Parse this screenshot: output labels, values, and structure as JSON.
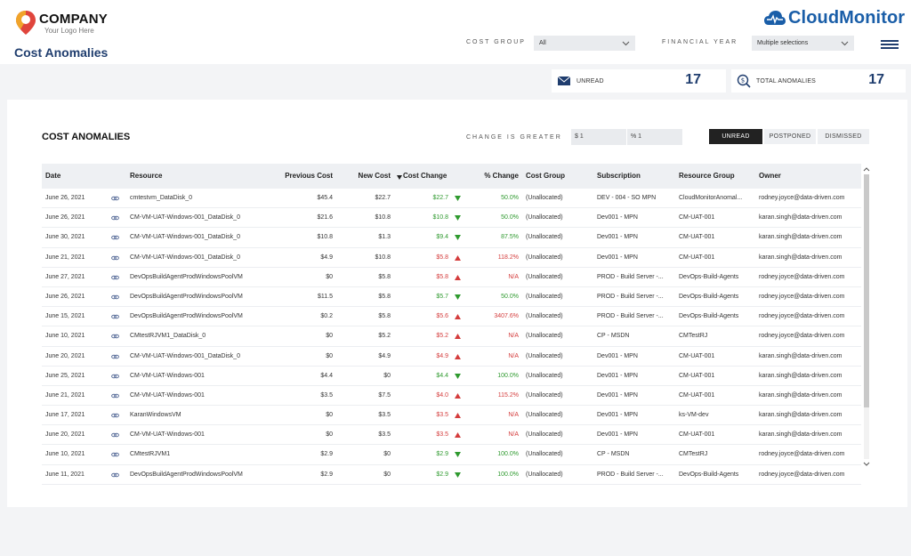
{
  "header": {
    "company": "COMPANY",
    "tagline": "Your Logo Here",
    "page_title": "Cost Anomalies",
    "brand": "CloudMonitor"
  },
  "filters": {
    "cost_group_label": "COST GROUP",
    "cost_group_value": "All",
    "financial_year_label": "FINANCIAL YEAR",
    "financial_year_value": "Multiple selections"
  },
  "kpis": {
    "unread_label": "UNREAD",
    "unread_value": "17",
    "total_label": "TOTAL ANOMALIES",
    "total_value": "17"
  },
  "panel": {
    "title": "COST ANOMALIES",
    "change_label": "CHANGE IS GREATER",
    "dollar_input": "$ 1",
    "percent_input": "% 1",
    "tabs": [
      "UNREAD",
      "POSTPONED",
      "DISMISSED"
    ]
  },
  "colors": {
    "accent": "#1f3d6e",
    "brand": "#1a5ea8",
    "increase": "#d43c3c",
    "decrease": "#2f9a2f"
  },
  "table": {
    "columns": [
      "Date",
      "Resource",
      "Previous Cost",
      "New Cost",
      "Cost Change",
      "% Change",
      "Cost Group",
      "Subscription",
      "Resource Group",
      "Owner"
    ],
    "rows": [
      {
        "date": "June 26, 2021",
        "resource": "cmtestvm_DataDisk_0",
        "prev": "$45.4",
        "new": "$22.7",
        "change": "$22.7",
        "dir": "down",
        "pct": "50.0%",
        "group": "(Unallocated)",
        "sub": "DEV - 004 - SO MPN",
        "rg": "CloudMonitorAnomal...",
        "owner": "rodney.joyce@data-driven.com"
      },
      {
        "date": "June 26, 2021",
        "resource": "CM-VM-UAT-Windows-001_DataDisk_0",
        "prev": "$21.6",
        "new": "$10.8",
        "change": "$10.8",
        "dir": "down",
        "pct": "50.0%",
        "group": "(Unallocated)",
        "sub": "Dev001 - MPN",
        "rg": "CM-UAT-001",
        "owner": "karan.singh@data-driven.com"
      },
      {
        "date": "June 30, 2021",
        "resource": "CM-VM-UAT-Windows-001_DataDisk_0",
        "prev": "$10.8",
        "new": "$1.3",
        "change": "$9.4",
        "dir": "down",
        "pct": "87.5%",
        "group": "(Unallocated)",
        "sub": "Dev001 - MPN",
        "rg": "CM-UAT-001",
        "owner": "karan.singh@data-driven.com"
      },
      {
        "date": "June 21, 2021",
        "resource": "CM-VM-UAT-Windows-001_DataDisk_0",
        "prev": "$4.9",
        "new": "$10.8",
        "change": "$5.8",
        "dir": "up",
        "pct": "118.2%",
        "group": "(Unallocated)",
        "sub": "Dev001 - MPN",
        "rg": "CM-UAT-001",
        "owner": "karan.singh@data-driven.com"
      },
      {
        "date": "June 27, 2021",
        "resource": "DevOpsBuildAgentProdWindowsPoolVM",
        "prev": "$0",
        "new": "$5.8",
        "change": "$5.8",
        "dir": "up",
        "pct": "N/A",
        "group": "(Unallocated)",
        "sub": "PROD - Build Server -...",
        "rg": "DevOps-Build-Agents",
        "owner": "rodney.joyce@data-driven.com"
      },
      {
        "date": "June 26, 2021",
        "resource": "DevOpsBuildAgentProdWindowsPoolVM",
        "prev": "$11.5",
        "new": "$5.8",
        "change": "$5.7",
        "dir": "down",
        "pct": "50.0%",
        "group": "(Unallocated)",
        "sub": "PROD - Build Server -...",
        "rg": "DevOps-Build-Agents",
        "owner": "rodney.joyce@data-driven.com"
      },
      {
        "date": "June 15, 2021",
        "resource": "DevOpsBuildAgentProdWindowsPoolVM",
        "prev": "$0.2",
        "new": "$5.8",
        "change": "$5.6",
        "dir": "up",
        "pct": "3407.6%",
        "group": "(Unallocated)",
        "sub": "PROD - Build Server -...",
        "rg": "DevOps-Build-Agents",
        "owner": "rodney.joyce@data-driven.com"
      },
      {
        "date": "June 10, 2021",
        "resource": "CMtestRJVM1_DataDisk_0",
        "prev": "$0",
        "new": "$5.2",
        "change": "$5.2",
        "dir": "up",
        "pct": "N/A",
        "group": "(Unallocated)",
        "sub": "CP - MSDN",
        "rg": "CMTestRJ",
        "owner": "rodney.joyce@data-driven.com"
      },
      {
        "date": "June 20, 2021",
        "resource": "CM-VM-UAT-Windows-001_DataDisk_0",
        "prev": "$0",
        "new": "$4.9",
        "change": "$4.9",
        "dir": "up",
        "pct": "N/A",
        "group": "(Unallocated)",
        "sub": "Dev001 - MPN",
        "rg": "CM-UAT-001",
        "owner": "karan.singh@data-driven.com"
      },
      {
        "date": "June 25, 2021",
        "resource": "CM-VM-UAT-Windows-001",
        "prev": "$4.4",
        "new": "$0",
        "change": "$4.4",
        "dir": "down",
        "pct": "100.0%",
        "group": "(Unallocated)",
        "sub": "Dev001 - MPN",
        "rg": "CM-UAT-001",
        "owner": "karan.singh@data-driven.com"
      },
      {
        "date": "June 21, 2021",
        "resource": "CM-VM-UAT-Windows-001",
        "prev": "$3.5",
        "new": "$7.5",
        "change": "$4.0",
        "dir": "up",
        "pct": "115.2%",
        "group": "(Unallocated)",
        "sub": "Dev001 - MPN",
        "rg": "CM-UAT-001",
        "owner": "karan.singh@data-driven.com"
      },
      {
        "date": "June 17, 2021",
        "resource": "KaranWindowsVM",
        "prev": "$0",
        "new": "$3.5",
        "change": "$3.5",
        "dir": "up",
        "pct": "N/A",
        "group": "(Unallocated)",
        "sub": "Dev001 - MPN",
        "rg": "ks-VM-dev",
        "owner": "karan.singh@data-driven.com"
      },
      {
        "date": "June 20, 2021",
        "resource": "CM-VM-UAT-Windows-001",
        "prev": "$0",
        "new": "$3.5",
        "change": "$3.5",
        "dir": "up",
        "pct": "N/A",
        "group": "(Unallocated)",
        "sub": "Dev001 - MPN",
        "rg": "CM-UAT-001",
        "owner": "karan.singh@data-driven.com"
      },
      {
        "date": "June 10, 2021",
        "resource": "CMtestRJVM1",
        "prev": "$2.9",
        "new": "$0",
        "change": "$2.9",
        "dir": "down",
        "pct": "100.0%",
        "group": "(Unallocated)",
        "sub": "CP - MSDN",
        "rg": "CMTestRJ",
        "owner": "rodney.joyce@data-driven.com"
      },
      {
        "date": "June 11, 2021",
        "resource": "DevOpsBuildAgentProdWindowsPoolVM",
        "prev": "$2.9",
        "new": "$0",
        "change": "$2.9",
        "dir": "down",
        "pct": "100.0%",
        "group": "(Unallocated)",
        "sub": "PROD - Build Server -...",
        "rg": "DevOps-Build-Agents",
        "owner": "rodney.joyce@data-driven.com"
      }
    ]
  }
}
